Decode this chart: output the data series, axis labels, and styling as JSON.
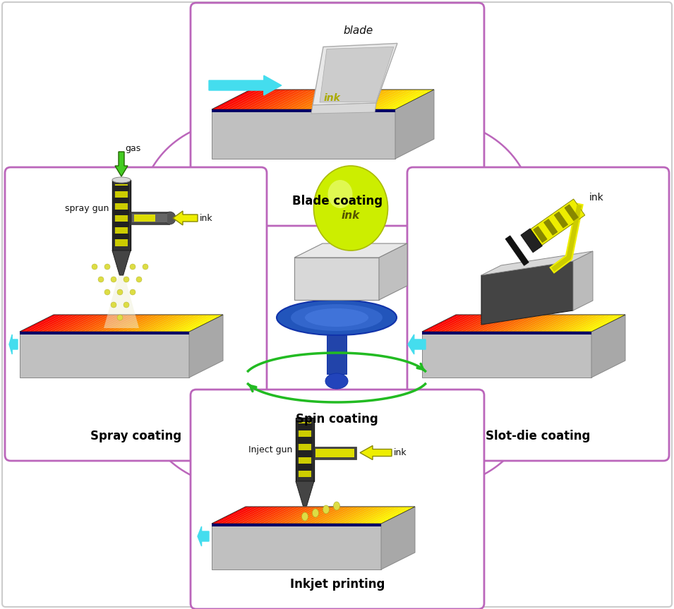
{
  "background_color": "#ffffff",
  "panel_border_color": "#bb66bb",
  "outer_border_color": "#bbbbbb",
  "connection_color": "#bb66bb",
  "cyan_color": "#44ddee",
  "yellow_color": "#eeee00",
  "green_color": "#44cc22",
  "methods": [
    "Blade coating",
    "Spray coating",
    "Spin coating",
    "Slot-die coating",
    "Inkjet printing"
  ],
  "substrate_gray_light": "#d0d0d0",
  "substrate_gray_mid": "#b8b8b8",
  "substrate_gray_dark": "#999999",
  "ink_red": [
    1.0,
    0.0,
    0.0
  ],
  "ink_yellow": [
    1.0,
    1.0,
    0.0
  ]
}
